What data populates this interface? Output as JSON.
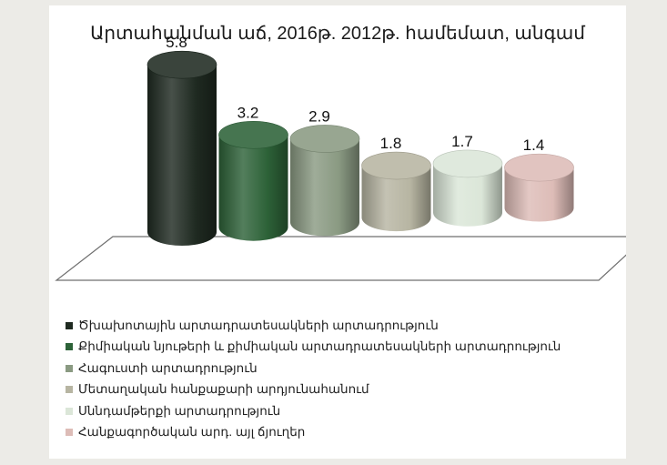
{
  "chart_data": {
    "type": "bar",
    "title": "Արտահանման աճ, 2016թ. 2012թ. համեմատ, անգամ",
    "categories": [
      "Ծխախոտային արտադրատեսակների արտադրություն",
      "Քիմիական նյութերի և քիմիական արտադրատեսակների արտադրություն",
      "Հագուստի արտադրություն",
      "Մետաղական հանքաքարի արդյունահանում",
      "Սննդամթերքի արտադրություն",
      "Հանքագործական արդ. այլ ճյուղեր"
    ],
    "values": [
      5.8,
      3.2,
      2.9,
      1.8,
      1.7,
      1.4
    ],
    "value_labels": [
      "5.8",
      "3.2",
      "2.9",
      "1.8",
      "1.7",
      "1.4"
    ],
    "colors": [
      "#1f2a21",
      "#2d6238",
      "#8a9a82",
      "#b7b5a2",
      "#dbe6d8",
      "#ddbcb7"
    ],
    "legend_position": "bottom",
    "grid": false,
    "ylim": [
      0,
      6
    ],
    "three_d": true,
    "shape": "cylinder"
  }
}
